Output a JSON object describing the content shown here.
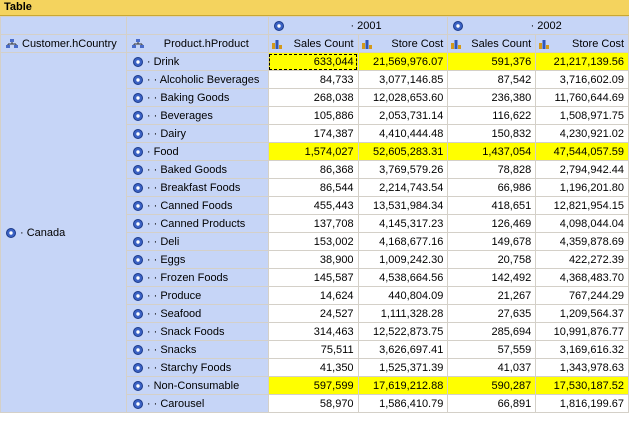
{
  "title": "Table",
  "header": {
    "years": [
      "2001",
      "2002"
    ],
    "dim_country": "Customer.hCountry",
    "dim_product": "Product.hProduct",
    "measures": [
      "Sales Count",
      "Store Cost",
      "Sales Count",
      "Store Cost"
    ]
  },
  "country_label": "Canada",
  "rows": [
    {
      "label": "Drink",
      "level": 0,
      "highlight": true,
      "values": [
        "633,044",
        "21,569,976.07",
        "591,376",
        "21,217,139.56"
      ]
    },
    {
      "label": "Alcoholic Beverages",
      "level": 1,
      "highlight": false,
      "values": [
        "84,733",
        "3,077,146.85",
        "87,542",
        "3,716,602.09"
      ]
    },
    {
      "label": "Baking Goods",
      "level": 1,
      "highlight": false,
      "values": [
        "268,038",
        "12,028,653.60",
        "236,380",
        "11,760,644.69"
      ]
    },
    {
      "label": "Beverages",
      "level": 1,
      "highlight": false,
      "values": [
        "105,886",
        "2,053,731.14",
        "116,622",
        "1,508,971.75"
      ]
    },
    {
      "label": "Dairy",
      "level": 1,
      "highlight": false,
      "values": [
        "174,387",
        "4,410,444.48",
        "150,832",
        "4,230,921.02"
      ]
    },
    {
      "label": "Food",
      "level": 0,
      "highlight": true,
      "values": [
        "1,574,027",
        "52,605,283.31",
        "1,437,054",
        "47,544,057.59"
      ]
    },
    {
      "label": "Baked Goods",
      "level": 1,
      "highlight": false,
      "values": [
        "86,368",
        "3,769,579.26",
        "78,828",
        "2,794,942.44"
      ]
    },
    {
      "label": "Breakfast Foods",
      "level": 1,
      "highlight": false,
      "values": [
        "86,544",
        "2,214,743.54",
        "66,986",
        "1,196,201.80"
      ]
    },
    {
      "label": "Canned Foods",
      "level": 1,
      "highlight": false,
      "values": [
        "455,443",
        "13,531,984.34",
        "418,651",
        "12,821,954.15"
      ]
    },
    {
      "label": "Canned Products",
      "level": 1,
      "highlight": false,
      "values": [
        "137,708",
        "4,145,317.23",
        "126,469",
        "4,098,044.04"
      ]
    },
    {
      "label": "Deli",
      "level": 1,
      "highlight": false,
      "values": [
        "153,002",
        "4,168,677.16",
        "149,678",
        "4,359,878.69"
      ]
    },
    {
      "label": "Eggs",
      "level": 1,
      "highlight": false,
      "values": [
        "38,900",
        "1,009,242.30",
        "20,758",
        "422,272.39"
      ]
    },
    {
      "label": "Frozen Foods",
      "level": 1,
      "highlight": false,
      "values": [
        "145,587",
        "4,538,664.56",
        "142,492",
        "4,368,483.70"
      ]
    },
    {
      "label": "Produce",
      "level": 1,
      "highlight": false,
      "values": [
        "14,624",
        "440,804.09",
        "21,267",
        "767,244.29"
      ]
    },
    {
      "label": "Seafood",
      "level": 1,
      "highlight": false,
      "values": [
        "24,527",
        "1,111,328.28",
        "27,635",
        "1,209,564.37"
      ]
    },
    {
      "label": "Snack Foods",
      "level": 1,
      "highlight": false,
      "values": [
        "314,463",
        "12,522,873.75",
        "285,694",
        "10,991,876.77"
      ]
    },
    {
      "label": "Snacks",
      "level": 1,
      "highlight": false,
      "values": [
        "75,511",
        "3,626,697.41",
        "57,559",
        "3,169,616.32"
      ]
    },
    {
      "label": "Starchy Foods",
      "level": 1,
      "highlight": false,
      "values": [
        "41,350",
        "1,525,371.39",
        "41,037",
        "1,343,978.63"
      ]
    },
    {
      "label": "Non-Consumable",
      "level": 0,
      "highlight": true,
      "values": [
        "597,599",
        "17,619,212.88",
        "590,287",
        "17,530,187.52"
      ]
    },
    {
      "label": "Carousel",
      "level": 1,
      "highlight": false,
      "values": [
        "58,970",
        "1,586,410.79",
        "66,891",
        "1,816,199.67"
      ]
    }
  ],
  "colors": {
    "header_bg": "#c6d5f7",
    "highlight": "#ffff00",
    "title_bg": "#f4d35e"
  },
  "icons": {
    "member": "member-icon",
    "hierarchy": "hierarchy-icon",
    "measure": "measure-icon"
  }
}
